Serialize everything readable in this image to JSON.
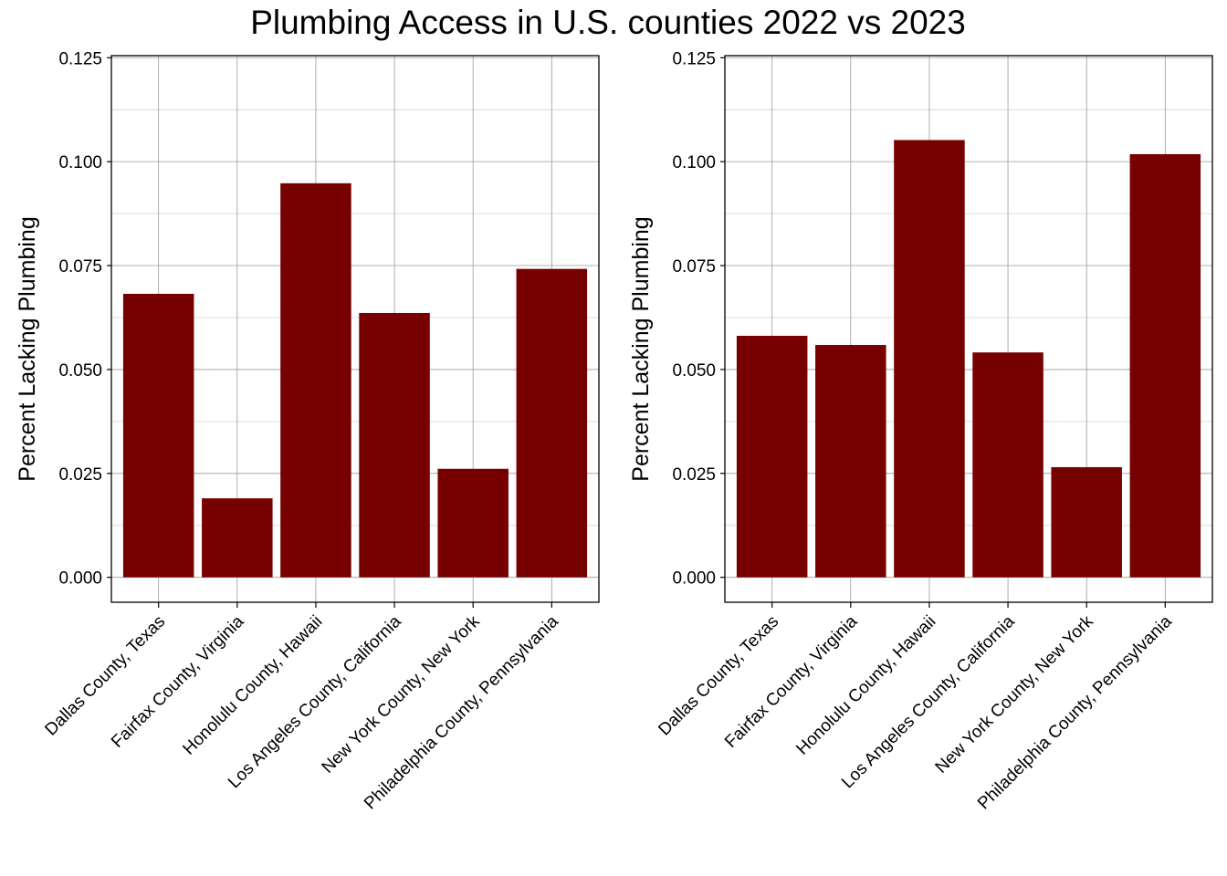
{
  "figure": {
    "title": "Plumbing Access in U.S. counties 2022 vs 2023"
  },
  "colors": {
    "bar": "#770000",
    "grid_major": "#9a9a9a",
    "grid_minor": "#dcdcdc",
    "axis": "#000000"
  },
  "chart_data": [
    {
      "type": "bar",
      "title": "",
      "xlabel": "",
      "ylabel": "Percent Lacking Plumbing",
      "ylim": [
        -0.006,
        0.1255
      ],
      "yticks": [
        "0.000",
        "0.025",
        "0.050",
        "0.075",
        "0.100",
        "0.125"
      ],
      "grid": true,
      "categories": [
        "Dallas County, Texas",
        "Fairfax County, Virginia",
        "Honolulu County, Hawaii",
        "Los Angeles County, California",
        "New York County, New York",
        "Philadelphia County, Pennsylvania"
      ],
      "values": [
        0.0682,
        0.019,
        0.0948,
        0.0636,
        0.0261,
        0.0742
      ]
    },
    {
      "type": "bar",
      "title": "",
      "xlabel": "",
      "ylabel": "Percent Lacking Plumbing",
      "ylim": [
        -0.006,
        0.1255
      ],
      "yticks": [
        "0.000",
        "0.025",
        "0.050",
        "0.075",
        "0.100",
        "0.125"
      ],
      "grid": true,
      "categories": [
        "Dallas County, Texas",
        "Fairfax County, Virginia",
        "Honolulu County, Hawaii",
        "Los Angeles County, California",
        "New York County, New York",
        "Philadelphia County, Pennsylvania"
      ],
      "values": [
        0.0581,
        0.0559,
        0.1052,
        0.0541,
        0.0265,
        0.1018
      ]
    }
  ]
}
